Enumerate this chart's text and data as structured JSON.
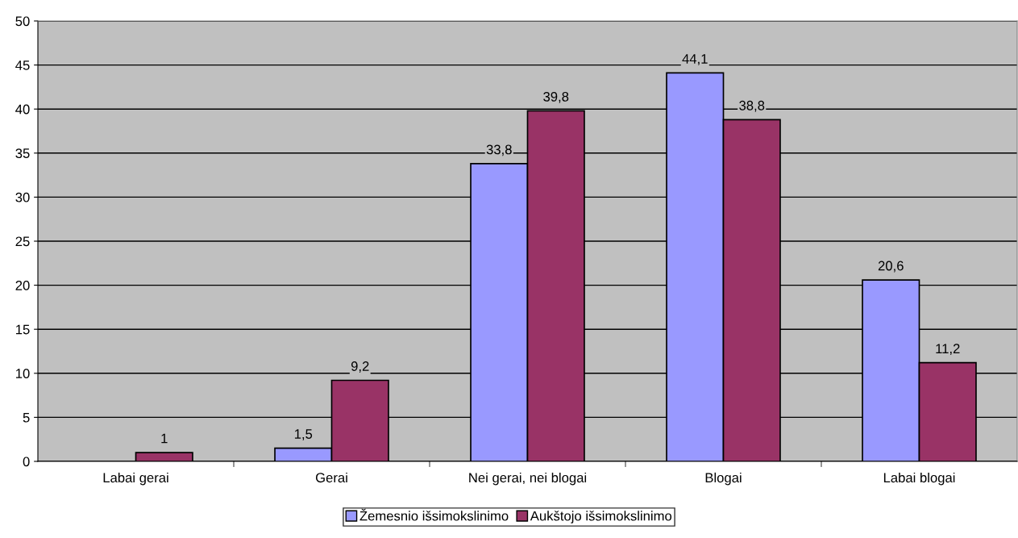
{
  "chart_data": {
    "type": "bar",
    "categories": [
      "Labai gerai",
      "Gerai",
      "Nei gerai, nei blogai",
      "Blogai",
      "Labai blogai"
    ],
    "series": [
      {
        "name": "Žemesnio išsimokslinimo",
        "color": "#9999ff",
        "values": [
          null,
          1.5,
          33.8,
          44.1,
          20.6
        ],
        "value_labels": [
          null,
          "1,5",
          "33,8",
          "44,1",
          "20,6"
        ]
      },
      {
        "name": "Aukštojo išsimokslinimo",
        "color": "#993366",
        "values": [
          1,
          9.2,
          39.8,
          38.8,
          11.2
        ],
        "value_labels": [
          "1",
          "9,2",
          "39,8",
          "38,8",
          "11,2"
        ]
      }
    ],
    "ylim": [
      0,
      50
    ],
    "yticks": [
      0,
      5,
      10,
      15,
      20,
      25,
      30,
      35,
      40,
      45,
      50
    ],
    "grid": "y",
    "legend": "bottom"
  }
}
